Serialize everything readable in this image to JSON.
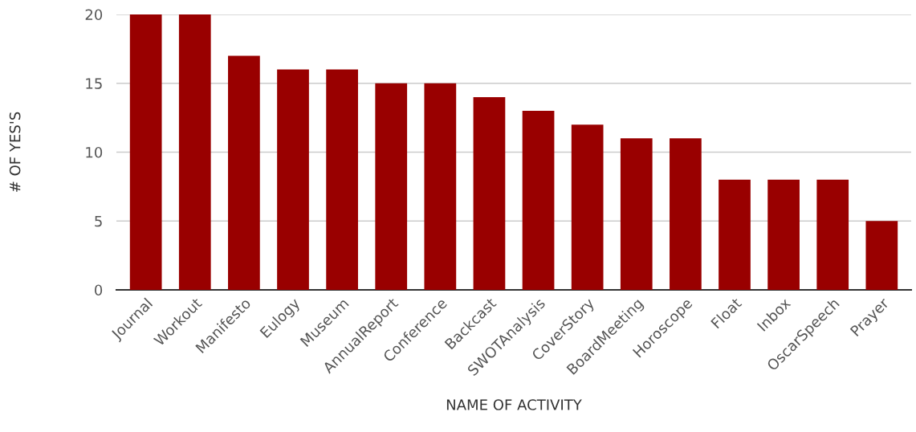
{
  "chart_data": {
    "type": "bar",
    "xlabel": "NAME OF ACTIVITY",
    "ylabel": "# OF YES'S",
    "categories": [
      "Journal",
      "Workout",
      "Manifesto",
      "Eulogy",
      "Museum",
      "AnnualReport",
      "Conference",
      "Backcast",
      "SWOTAnalysis",
      "CoverStory",
      "BoardMeeting",
      "Horoscope",
      "Float",
      "Inbox",
      "OscarSpeech",
      "Prayer"
    ],
    "values": [
      20,
      20,
      17,
      16,
      16,
      15,
      15,
      14,
      13,
      12,
      11,
      11,
      8,
      8,
      8,
      5
    ],
    "color": "#990000",
    "ylim": [
      0,
      20
    ],
    "yticks": [
      0,
      5,
      10,
      15,
      20
    ],
    "grid": "y"
  }
}
